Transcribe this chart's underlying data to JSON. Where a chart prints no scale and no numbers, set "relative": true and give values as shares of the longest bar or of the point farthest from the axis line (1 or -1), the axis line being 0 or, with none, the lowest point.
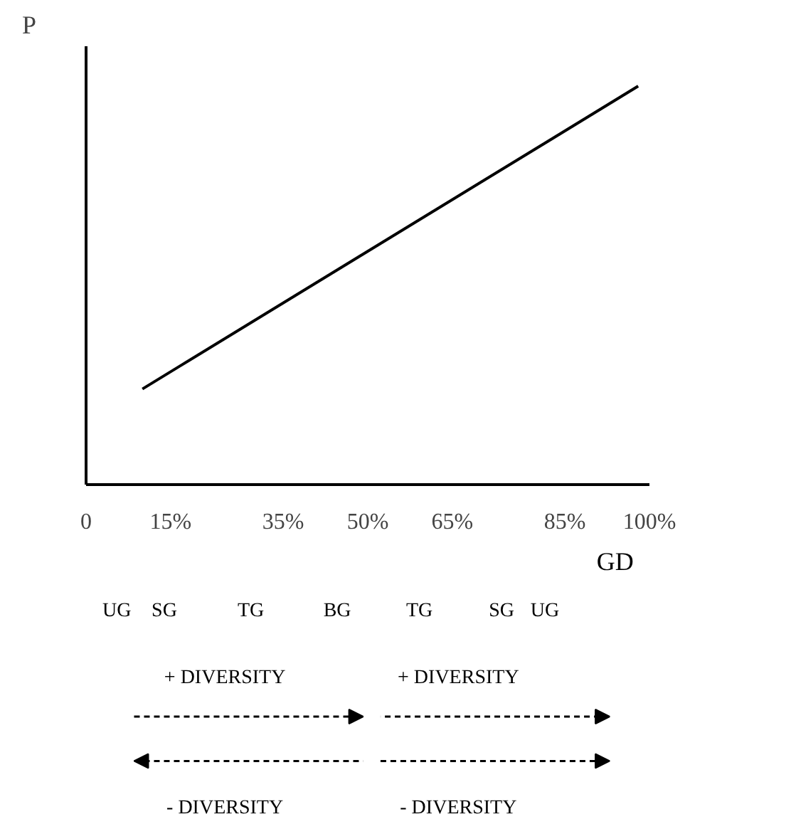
{
  "chart_data": {
    "type": "line",
    "relative": true,
    "xlabel": "GD",
    "ylabel": "P",
    "x": [
      10,
      98
    ],
    "series": [
      {
        "color": "#000000",
        "values": [
          0.24,
          1
        ]
      }
    ],
    "xlim": [
      0,
      100
    ],
    "xticks": [
      {
        "value": 0,
        "label": "0"
      },
      {
        "value": 15,
        "label": "15%"
      },
      {
        "value": 35,
        "label": "35%"
      },
      {
        "value": 50,
        "label": "50%"
      },
      {
        "value": 65,
        "label": "65%"
      },
      {
        "value": 85,
        "label": "85%"
      },
      {
        "value": 100,
        "label": "100%"
      }
    ],
    "grid": false,
    "marker": "none",
    "line_style": "solid",
    "annotations": [
      "UG",
      "SG",
      "TG",
      "BG",
      "TG",
      "SG",
      "UG",
      "+ DIVERSITY",
      "+ DIVERSITY",
      "- DIVERSITY",
      "- DIVERSITY"
    ]
  }
}
